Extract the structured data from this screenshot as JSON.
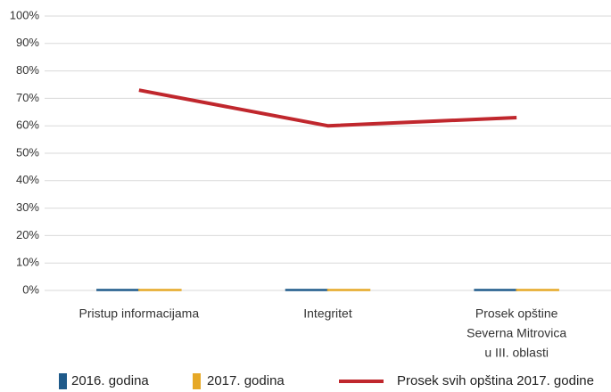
{
  "chart_data": {
    "type": "bar",
    "categories": [
      [
        "Pristup informacijama"
      ],
      [
        "Integritet"
      ],
      [
        "Prosek opštine",
        "Severna Mitrovica",
        "u III. oblasti"
      ]
    ],
    "series": [
      {
        "name": "2016. godina",
        "color": "#1f5a8a",
        "type": "bar",
        "values": [
          0,
          0,
          0
        ]
      },
      {
        "name": "2017. godina",
        "color": "#e6a826",
        "type": "bar",
        "values": [
          0,
          0,
          0
        ]
      },
      {
        "name": "Prosek svih opština 2017. godine",
        "color": "#c0272d",
        "type": "line",
        "values": [
          73,
          60,
          63
        ]
      }
    ],
    "ylim": [
      0,
      100
    ],
    "yticks": [
      {
        "value": 0,
        "label": "0%"
      },
      {
        "value": 10,
        "label": "10%"
      },
      {
        "value": 20,
        "label": "20%"
      },
      {
        "value": 30,
        "label": "30%"
      },
      {
        "value": 40,
        "label": "40%"
      },
      {
        "value": 50,
        "label": "50%"
      },
      {
        "value": 60,
        "label": "60%"
      },
      {
        "value": 70,
        "label": "70%"
      },
      {
        "value": 80,
        "label": "80%"
      },
      {
        "value": 90,
        "label": "90%"
      },
      {
        "value": 100,
        "label": "100%"
      }
    ],
    "grid": true
  }
}
